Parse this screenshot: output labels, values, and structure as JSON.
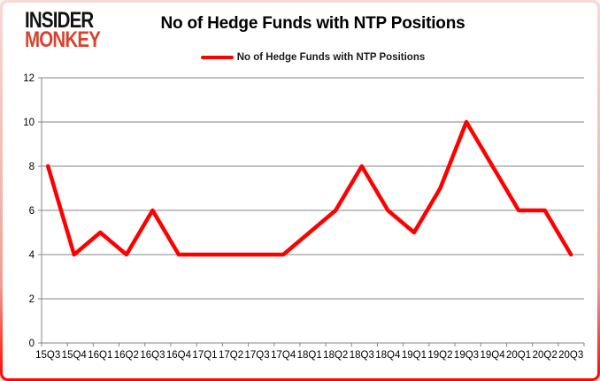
{
  "logo": {
    "line1": "INSIDER",
    "line2": "MONKEY"
  },
  "title": "No of Hedge Funds with NTP Positions",
  "legend": {
    "label": "No of Hedge Funds with NTP Positions"
  },
  "colors": {
    "line": "#ff0000",
    "grid": "#858585",
    "axis": "#858585",
    "text": "#000000",
    "logo_black": "#121212",
    "logo_red": "#d8432f"
  },
  "chart_data": {
    "type": "line",
    "title": "No of Hedge Funds with NTP Positions",
    "categories": [
      "15Q3",
      "15Q4",
      "16Q1",
      "16Q2",
      "16Q3",
      "16Q4",
      "17Q1",
      "17Q2",
      "17Q3",
      "17Q4",
      "18Q1",
      "18Q2",
      "18Q3",
      "18Q4",
      "19Q1",
      "19Q2",
      "19Q3",
      "19Q4",
      "20Q1",
      "20Q2",
      "20Q3"
    ],
    "series": [
      {
        "name": "No of Hedge Funds with NTP Positions",
        "values": [
          8,
          4,
          5,
          4,
          6,
          4,
          4,
          4,
          4,
          4,
          5,
          6,
          8,
          6,
          5,
          7,
          10,
          8,
          6,
          6,
          4
        ]
      }
    ],
    "xlabel": "",
    "ylabel": "",
    "ylim": [
      0,
      12
    ],
    "ytick_interval": 2,
    "grid": true,
    "legend_position": "top-center"
  }
}
